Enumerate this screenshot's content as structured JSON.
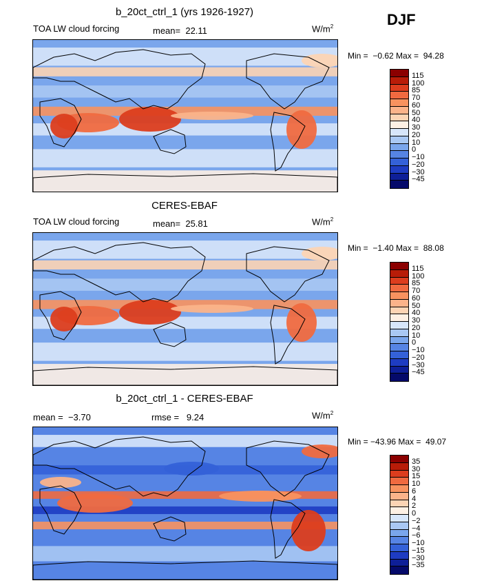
{
  "season": "DJF",
  "panels": [
    {
      "title": "b_20ct_ctrl_1 (yrs 1926-1927)",
      "left_label": "TOA LW cloud forcing",
      "stat_text": "mean=  22.11",
      "stat2_text": "",
      "units": "W/m",
      "units_sup": "2",
      "minmax": "Min =  −0.62 Max =  94.28",
      "levels": [
        "115",
        "100",
        "85",
        "70",
        "60",
        "50",
        "40",
        "30",
        "20",
        "10",
        "0",
        "−10",
        "−20",
        "−30",
        "−45"
      ],
      "colors": [
        "#8b0000",
        "#b81c08",
        "#dc3d1e",
        "#f06a40",
        "#f8925f",
        "#fbb38a",
        "#fcd4b4",
        "#fdf0e4",
        "#d7e6fa",
        "#a9c8f3",
        "#7aa6ec",
        "#5684e4",
        "#3461d8",
        "#1e3cc2",
        "#0e1f98",
        "#050a6a"
      ]
    },
    {
      "title": "CERES-EBAF",
      "left_label": "TOA LW cloud forcing",
      "stat_text": "mean=  25.81",
      "stat2_text": "",
      "units": "W/m",
      "units_sup": "2",
      "minmax": "Min =  −1.40 Max =  88.08",
      "levels": [
        "115",
        "100",
        "85",
        "70",
        "60",
        "50",
        "40",
        "30",
        "20",
        "10",
        "0",
        "−10",
        "−20",
        "−30",
        "−45"
      ],
      "colors": [
        "#8b0000",
        "#b81c08",
        "#dc3d1e",
        "#f06a40",
        "#f8925f",
        "#fbb38a",
        "#fcd4b4",
        "#fdf0e4",
        "#d7e6fa",
        "#a9c8f3",
        "#7aa6ec",
        "#5684e4",
        "#3461d8",
        "#1e3cc2",
        "#0e1f98",
        "#050a6a"
      ]
    },
    {
      "title": "b_20ct_ctrl_1 - CERES-EBAF",
      "left_label": "mean =  −3.70",
      "stat_text": "rmse =   9.24",
      "stat2_text": "",
      "units": "W/m",
      "units_sup": "2",
      "minmax": "Min = −43.96 Max =  49.07",
      "levels": [
        "35",
        "30",
        "15",
        "10",
        "6",
        "4",
        "2",
        "0",
        "−2",
        "−4",
        "−6",
        "−10",
        "−15",
        "−30",
        "−35"
      ],
      "colors": [
        "#8b0000",
        "#b81c08",
        "#dc3d1e",
        "#f06a40",
        "#f8925f",
        "#fbb38a",
        "#fcd4b4",
        "#fdf0e4",
        "#d7e6fa",
        "#a9c8f3",
        "#7aa6ec",
        "#5684e4",
        "#3461d8",
        "#1e3cc2",
        "#0e1f98",
        "#050a6a"
      ]
    }
  ]
}
